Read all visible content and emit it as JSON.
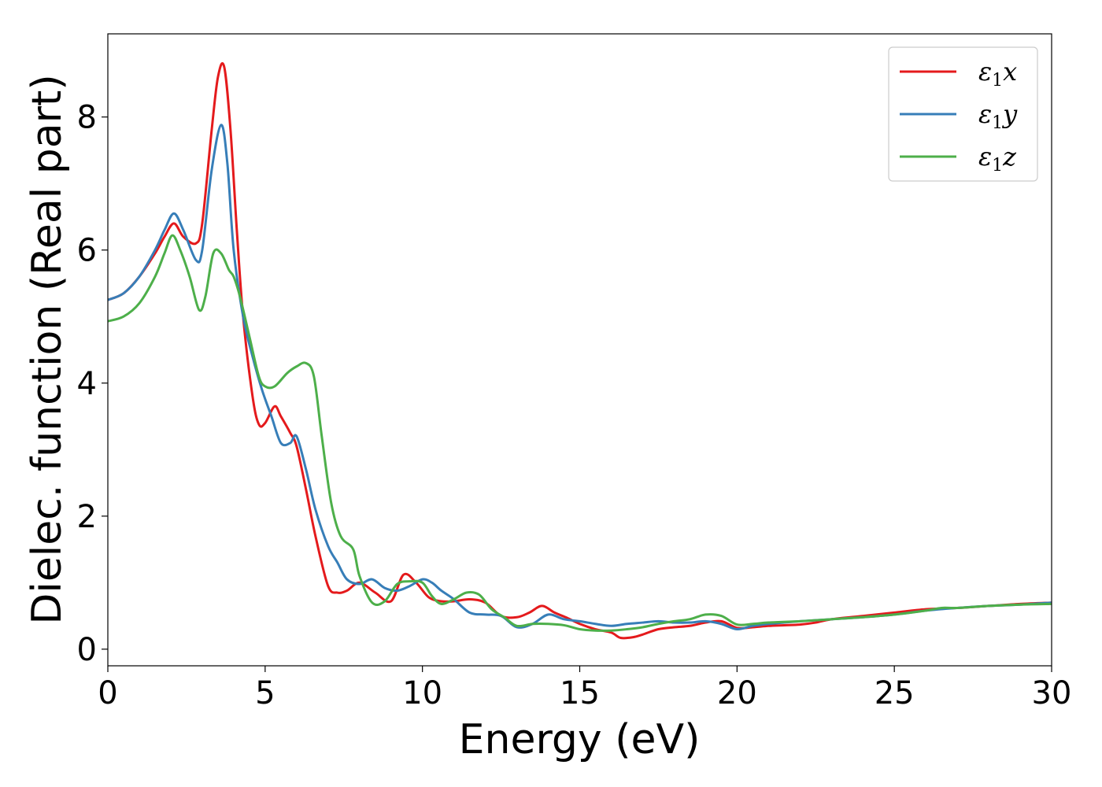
{
  "chart_data": {
    "type": "line",
    "xlabel": "Energy (eV)",
    "ylabel": "Dielec. function (Real part)",
    "xlim": [
      0,
      30
    ],
    "ylim": [
      -0.25,
      9.25
    ],
    "xticks": [
      0,
      5,
      10,
      15,
      20,
      25,
      30
    ],
    "yticks": [
      0,
      2,
      4,
      6,
      8
    ],
    "grid": false,
    "legend_position": "top-right",
    "series": [
      {
        "name": "ε1x",
        "color": "#e41a1c",
        "x": [
          0,
          0.5,
          1.0,
          1.5,
          1.8,
          2.1,
          2.4,
          2.8,
          3.0,
          3.3,
          3.5,
          3.7,
          3.9,
          4.1,
          4.3,
          4.6,
          4.8,
          5.0,
          5.3,
          5.5,
          5.8,
          6.0,
          6.3,
          6.6,
          7.0,
          7.3,
          7.6,
          8.0,
          8.5,
          9.0,
          9.4,
          9.8,
          10.2,
          10.6,
          11.0,
          11.5,
          12.0,
          12.5,
          13.0,
          13.4,
          13.8,
          14.2,
          14.6,
          15.0,
          15.5,
          16.0,
          16.3,
          16.7,
          17.0,
          17.5,
          18.0,
          18.5,
          19.0,
          19.5,
          20.0,
          20.5,
          21.0,
          21.5,
          22.0,
          22.5,
          23.0,
          24.0,
          25.0,
          26.0,
          27.0,
          28.0,
          29.0,
          30.0
        ],
        "values": [
          5.25,
          5.35,
          5.6,
          5.95,
          6.2,
          6.4,
          6.2,
          6.1,
          6.4,
          7.8,
          8.6,
          8.75,
          7.8,
          6.3,
          5.0,
          3.8,
          3.38,
          3.4,
          3.65,
          3.5,
          3.25,
          3.05,
          2.4,
          1.7,
          0.95,
          0.85,
          0.88,
          1.0,
          0.85,
          0.72,
          1.12,
          1.0,
          0.78,
          0.72,
          0.72,
          0.75,
          0.7,
          0.5,
          0.48,
          0.55,
          0.65,
          0.55,
          0.47,
          0.38,
          0.3,
          0.25,
          0.17,
          0.18,
          0.22,
          0.3,
          0.33,
          0.35,
          0.4,
          0.42,
          0.32,
          0.33,
          0.35,
          0.36,
          0.37,
          0.4,
          0.45,
          0.5,
          0.55,
          0.6,
          0.62,
          0.65,
          0.68,
          0.7
        ]
      },
      {
        "name": "ε1y",
        "color": "#377eb8",
        "x": [
          0,
          0.5,
          1.0,
          1.5,
          1.8,
          2.1,
          2.4,
          2.8,
          3.0,
          3.3,
          3.6,
          3.8,
          4.0,
          4.3,
          4.6,
          4.9,
          5.2,
          5.5,
          5.8,
          6.0,
          6.3,
          6.6,
          7.0,
          7.3,
          7.6,
          8.0,
          8.4,
          8.8,
          9.2,
          9.6,
          10.0,
          10.3,
          10.6,
          11.0,
          11.5,
          12.0,
          12.5,
          13.0,
          13.5,
          14.0,
          14.5,
          15.0,
          15.5,
          16.0,
          16.5,
          17.0,
          17.5,
          18.0,
          18.5,
          19.0,
          19.5,
          20.0,
          20.5,
          21.0,
          21.5,
          22.0,
          23.0,
          24.0,
          25.0,
          26.0,
          27.0,
          28.0,
          29.0,
          30.0
        ],
        "values": [
          5.25,
          5.35,
          5.6,
          6.0,
          6.3,
          6.55,
          6.3,
          5.85,
          6.0,
          7.2,
          7.88,
          7.3,
          6.0,
          5.0,
          4.4,
          3.9,
          3.5,
          3.1,
          3.1,
          3.2,
          2.7,
          2.1,
          1.55,
          1.3,
          1.05,
          0.98,
          1.05,
          0.92,
          0.88,
          0.95,
          1.05,
          1.0,
          0.88,
          0.75,
          0.55,
          0.52,
          0.5,
          0.33,
          0.38,
          0.52,
          0.45,
          0.42,
          0.38,
          0.35,
          0.38,
          0.4,
          0.42,
          0.4,
          0.4,
          0.42,
          0.38,
          0.3,
          0.35,
          0.38,
          0.4,
          0.42,
          0.45,
          0.48,
          0.52,
          0.58,
          0.62,
          0.65,
          0.67,
          0.7
        ]
      },
      {
        "name": "ε1z",
        "color": "#4daf4a",
        "x": [
          0,
          0.5,
          1.0,
          1.5,
          1.8,
          2.05,
          2.3,
          2.6,
          2.9,
          3.1,
          3.35,
          3.6,
          3.85,
          4.0,
          4.2,
          4.5,
          4.8,
          5.0,
          5.3,
          5.7,
          6.0,
          6.3,
          6.55,
          6.8,
          7.1,
          7.4,
          7.8,
          8.0,
          8.4,
          8.8,
          9.2,
          9.6,
          10.0,
          10.3,
          10.6,
          11.0,
          11.4,
          11.8,
          12.2,
          12.6,
          13.0,
          13.5,
          14.0,
          14.5,
          15.0,
          15.5,
          16.0,
          16.5,
          17.0,
          17.5,
          18.0,
          18.5,
          19.0,
          19.5,
          20.0,
          20.5,
          21.0,
          22.0,
          23.0,
          24.0,
          25.0,
          26.0,
          26.5,
          27.0,
          28.0,
          29.0,
          30.0
        ],
        "values": [
          4.93,
          5.0,
          5.2,
          5.6,
          5.95,
          6.22,
          6.0,
          5.6,
          5.1,
          5.3,
          5.95,
          5.95,
          5.7,
          5.6,
          5.3,
          4.7,
          4.1,
          3.95,
          3.95,
          4.15,
          4.25,
          4.3,
          4.1,
          3.2,
          2.2,
          1.7,
          1.5,
          1.1,
          0.7,
          0.72,
          0.98,
          1.02,
          1.0,
          0.8,
          0.68,
          0.75,
          0.85,
          0.82,
          0.6,
          0.48,
          0.35,
          0.38,
          0.38,
          0.36,
          0.3,
          0.28,
          0.28,
          0.3,
          0.33,
          0.38,
          0.42,
          0.45,
          0.52,
          0.5,
          0.37,
          0.38,
          0.4,
          0.42,
          0.45,
          0.48,
          0.52,
          0.58,
          0.62,
          0.62,
          0.65,
          0.67,
          0.68
        ]
      }
    ]
  }
}
